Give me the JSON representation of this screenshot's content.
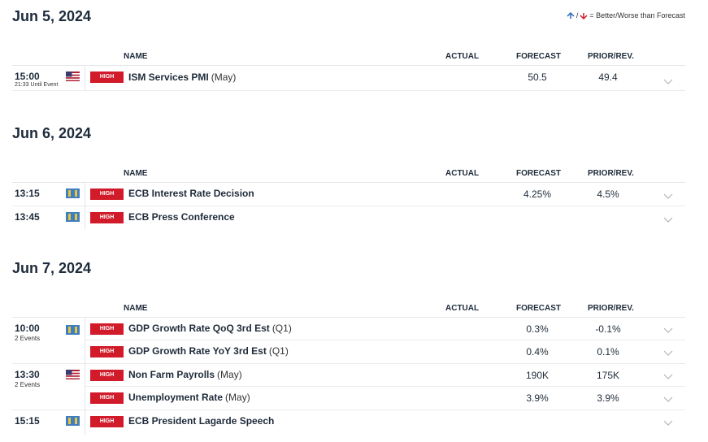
{
  "legend": {
    "text": "= Better/Worse than Forecast",
    "better_color": "#2a6ab8",
    "worse_color": "#d11b2a",
    "slash": "/"
  },
  "headers": {
    "name": "NAME",
    "actual": "ACTUAL",
    "forecast": "FORECAST",
    "prior": "PRIOR/REV."
  },
  "days": [
    {
      "date": "Jun 5, 2024"
    },
    {
      "date": "Jun 6, 2024"
    },
    {
      "date": "Jun 7, 2024"
    }
  ],
  "events": [
    {
      "time": "15:00",
      "sub": "21:33 Until Event",
      "flag": "us-flag",
      "impact": "HIGH",
      "name": "ISM Services PMI",
      "period": "(May)",
      "actual": "",
      "forecast": "50.5",
      "prior": "49.4"
    },
    {
      "time": "13:15",
      "sub": "",
      "flag": "eu-flag",
      "impact": "HIGH",
      "name": "ECB Interest Rate Decision",
      "period": "",
      "actual": "",
      "forecast": "4.25%",
      "prior": "4.5%"
    },
    {
      "time": "13:45",
      "sub": "",
      "flag": "eu-flag",
      "impact": "HIGH",
      "name": "ECB Press Conference",
      "period": "",
      "actual": "",
      "forecast": "",
      "prior": ""
    },
    {
      "time": "10:00",
      "sub": "2 Events",
      "flag": "eu-flag",
      "impact": "HIGH",
      "name": "GDP Growth Rate QoQ 3rd Est",
      "period": "(Q1)",
      "actual": "",
      "forecast": "0.3%",
      "prior": "-0.1%"
    },
    {
      "time": "",
      "sub": "",
      "flag": "",
      "impact": "HIGH",
      "name": "GDP Growth Rate YoY 3rd Est",
      "period": "(Q1)",
      "actual": "",
      "forecast": "0.4%",
      "prior": "0.1%"
    },
    {
      "time": "13:30",
      "sub": "2 Events",
      "flag": "us-flag",
      "impact": "HIGH",
      "name": "Non Farm Payrolls",
      "period": "(May)",
      "actual": "",
      "forecast": "190K",
      "prior": "175K"
    },
    {
      "time": "",
      "sub": "",
      "flag": "",
      "impact": "HIGH",
      "name": "Unemployment Rate",
      "period": "(May)",
      "actual": "",
      "forecast": "3.9%",
      "prior": "3.9%"
    },
    {
      "time": "15:15",
      "sub": "",
      "flag": "eu-flag",
      "impact": "HIGH",
      "name": "ECB President Lagarde Speech",
      "period": "",
      "actual": "",
      "forecast": "",
      "prior": ""
    }
  ]
}
